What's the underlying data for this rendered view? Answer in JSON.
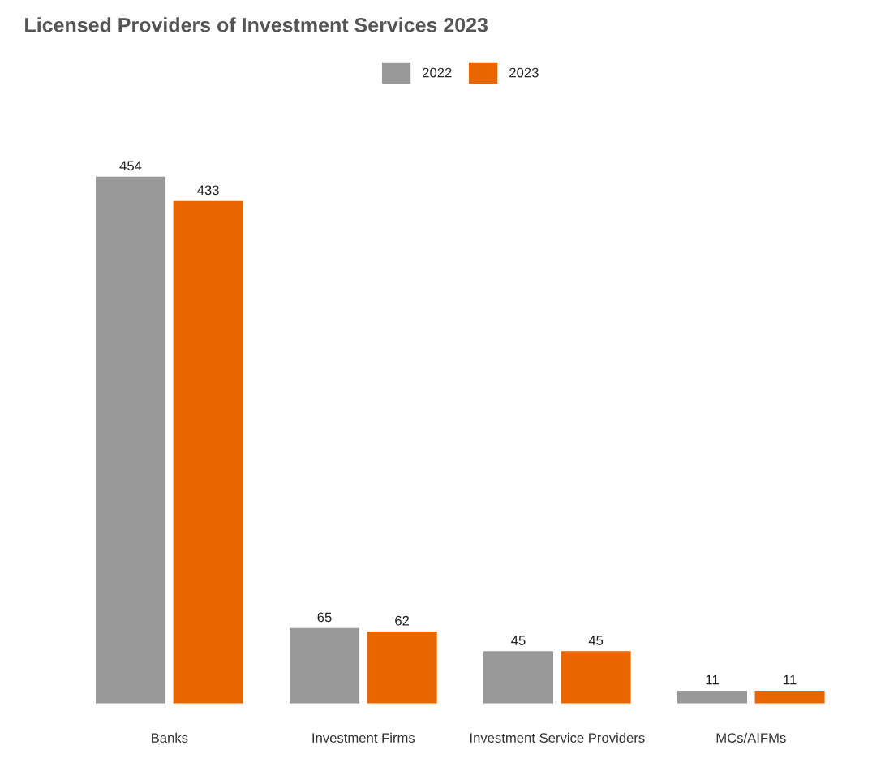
{
  "chart_data": {
    "type": "bar",
    "title": "Licensed Providers of Investment Services 2023",
    "categories": [
      "Banks",
      "Investment Firms",
      "Investment Service Providers",
      "MCs/AIFMs"
    ],
    "series": [
      {
        "name": "2022",
        "color": "#999999",
        "values": [
          454,
          65,
          45,
          11
        ]
      },
      {
        "name": "2023",
        "color": "#e86600",
        "values": [
          433,
          62,
          45,
          11
        ]
      }
    ],
    "data_labels": true,
    "legend": "top",
    "grid": false
  }
}
